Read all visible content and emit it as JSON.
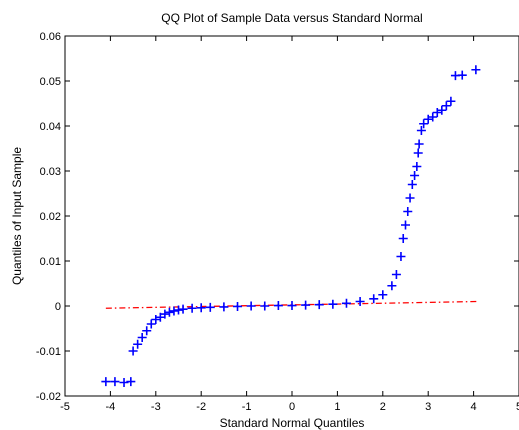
{
  "chart_data": {
    "type": "scatter",
    "title": "QQ Plot of Sample Data versus Standard Normal",
    "xlabel": "Standard Normal Quantiles",
    "ylabel": "Quantiles of Input Sample",
    "xlim": [
      -5,
      5
    ],
    "ylim": [
      -0.02,
      0.06
    ],
    "x_ticks": [
      -5,
      -4,
      -3,
      -2,
      -1,
      0,
      1,
      2,
      3,
      4,
      5
    ],
    "x_tick_labels": [
      "-5",
      "-4",
      "-3",
      "-2",
      "-1",
      "0",
      "1",
      "2",
      "3",
      "4",
      "5"
    ],
    "y_ticks": [
      -0.02,
      -0.01,
      0,
      0.01,
      0.02,
      0.03,
      0.04,
      0.05,
      0.06
    ],
    "y_tick_labels": [
      "-0.02",
      "-0.01",
      "0",
      "0.01",
      "0.02",
      "0.03",
      "0.04",
      "0.05",
      "0.06"
    ],
    "grid": false,
    "colors": {
      "markers": "#0000ff",
      "reference_line": "#ff0000"
    },
    "series": [
      {
        "marker": "+",
        "points": [
          [
            -4.1,
            -0.0168
          ],
          [
            -3.9,
            -0.0168
          ],
          [
            -3.7,
            -0.017
          ],
          [
            -3.55,
            -0.0168
          ],
          [
            -3.5,
            -0.01
          ],
          [
            -3.4,
            -0.0085
          ],
          [
            -3.3,
            -0.007
          ],
          [
            -3.2,
            -0.0055
          ],
          [
            -3.1,
            -0.004
          ],
          [
            -3.0,
            -0.003
          ],
          [
            -2.9,
            -0.0025
          ],
          [
            -2.8,
            -0.0018
          ],
          [
            -2.7,
            -0.0014
          ],
          [
            -2.6,
            -0.0011
          ],
          [
            -2.5,
            -0.0009
          ],
          [
            -2.4,
            -0.0007
          ],
          [
            -2.2,
            -0.0005
          ],
          [
            -2.0,
            -0.0004
          ],
          [
            -1.8,
            -0.0003
          ],
          [
            -1.5,
            -0.0002
          ],
          [
            -1.2,
            -0.0001
          ],
          [
            -0.9,
            0.0
          ],
          [
            -0.6,
            0.0
          ],
          [
            -0.3,
            0.0001
          ],
          [
            0.0,
            0.0001
          ],
          [
            0.3,
            0.0002
          ],
          [
            0.6,
            0.0003
          ],
          [
            0.9,
            0.0004
          ],
          [
            1.2,
            0.0006
          ],
          [
            1.5,
            0.001
          ],
          [
            1.8,
            0.0016
          ],
          [
            2.0,
            0.0025
          ],
          [
            2.2,
            0.0045
          ],
          [
            2.3,
            0.007
          ],
          [
            2.4,
            0.011
          ],
          [
            2.45,
            0.015
          ],
          [
            2.5,
            0.018
          ],
          [
            2.55,
            0.021
          ],
          [
            2.6,
            0.024
          ],
          [
            2.65,
            0.027
          ],
          [
            2.7,
            0.029
          ],
          [
            2.75,
            0.031
          ],
          [
            2.78,
            0.034
          ],
          [
            2.8,
            0.036
          ],
          [
            2.85,
            0.039
          ],
          [
            2.9,
            0.0405
          ],
          [
            3.0,
            0.0415
          ],
          [
            3.1,
            0.042
          ],
          [
            3.2,
            0.043
          ],
          [
            3.3,
            0.0435
          ],
          [
            3.4,
            0.0445
          ],
          [
            3.5,
            0.0455
          ],
          [
            3.6,
            0.0512
          ],
          [
            3.75,
            0.0513
          ],
          [
            4.05,
            0.0525
          ]
        ]
      }
    ],
    "reference_line": {
      "style": "dash-dot",
      "x": [
        -4.1,
        4.1
      ],
      "y": [
        -0.0005,
        0.001
      ]
    }
  }
}
